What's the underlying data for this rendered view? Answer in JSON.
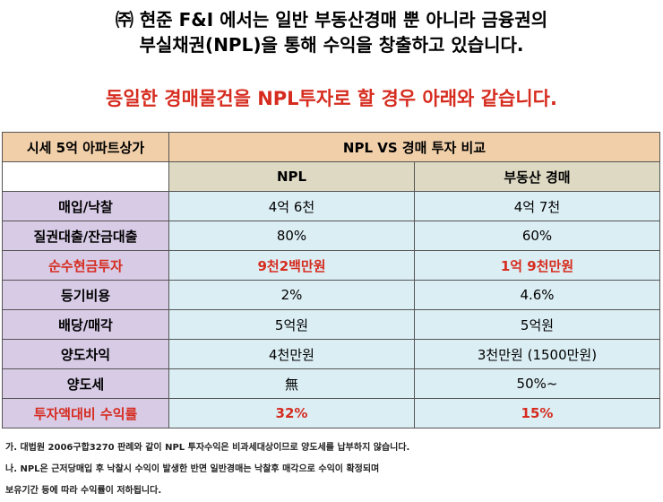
{
  "heading": {
    "line1": "㈜ 현준 F&I 에서는 일반 부동산경매 뿐 아니라 금융권의",
    "line2": "부실채권(NPL)을 통해  수익을 창출하고 있습니다.",
    "subtitle": "동일한 경매물건을 NPL투자로 할 경우 아래와 같습니다."
  },
  "table": {
    "corner_label": "시세 5억 아파트상가",
    "title": "NPL VS 경매 투자 비교",
    "columns": [
      "NPL",
      "부동산 경매"
    ],
    "rows": [
      {
        "label": "매입/낙찰",
        "npl": "4억 6천",
        "auction": "4억 7천",
        "highlight": false
      },
      {
        "label": "질권대출/잔금대출",
        "npl": "80%",
        "auction": "60%",
        "highlight": false
      },
      {
        "label": "순수현금투자",
        "npl": "9천2백만원",
        "auction": "1억 9천만원",
        "highlight": true
      },
      {
        "label": "등기비용",
        "npl": "2%",
        "auction": "4.6%",
        "highlight": false
      },
      {
        "label": "배당/매각",
        "npl": "5억원",
        "auction": "5억원",
        "highlight": false
      },
      {
        "label": "양도차익",
        "npl": "4천만원",
        "auction": "3천만원 (1500만원)",
        "highlight": false
      },
      {
        "label": "양도세",
        "npl": "無",
        "auction": "50%~",
        "highlight": false
      },
      {
        "label": "투자액대비 수익률",
        "npl": "32%",
        "auction": "15%",
        "highlight": "values"
      }
    ]
  },
  "footnotes": [
    "가. 대법원 2006구합3270 판례와 같이 NPL 투자수익은 비과세대상이므로 양도세를 납부하지 않습니다.",
    "나. NPL은 근저당매입 후 낙찰시 수익이 발생한 반면 일반경매는 낙찰후 매각으로 수익이 확정되며",
    "보유기간 등에 따라 수익률이 저하됩니다."
  ],
  "colors": {
    "accent_red": "#d62c1f",
    "header_bg": "#f1cfa9",
    "label_bg": "#d7cbe6",
    "value_bg": "#dbeef4",
    "colhead_bg": "#ddd9c3"
  }
}
